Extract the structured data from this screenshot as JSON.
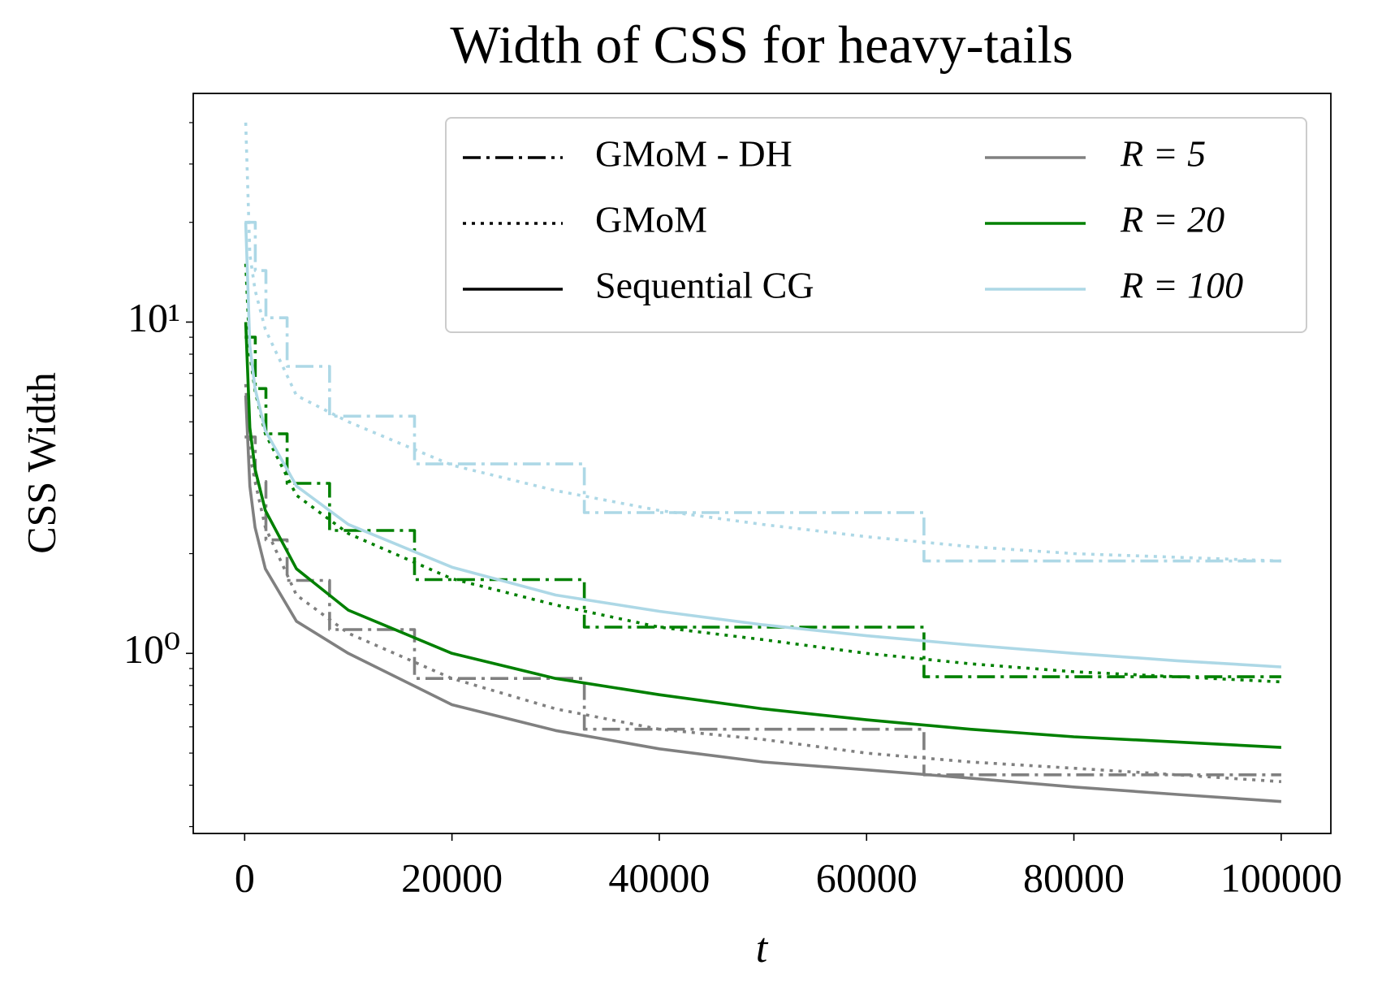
{
  "chart_data": {
    "type": "line",
    "title": "Width of CSS for heavy-tails",
    "x_label": "t",
    "y_label": "CSS Width",
    "log_y": true,
    "xlim": [
      -4960,
      104790
    ],
    "ylim": [
      0.286,
      49
    ],
    "xticks": [
      0,
      20000,
      40000,
      60000,
      80000,
      100000
    ],
    "yticks": [
      {
        "value": 1,
        "label": "10⁰"
      },
      {
        "value": 10,
        "label": "10¹"
      }
    ],
    "yminorticks": [
      0.3,
      0.4,
      0.5,
      0.6,
      0.7,
      0.8,
      0.9,
      2,
      3,
      4,
      5,
      6,
      7,
      8,
      9,
      20,
      30,
      40
    ],
    "legend_styles": [
      {
        "name": "GMoM - DH",
        "dash": "dashdot"
      },
      {
        "name": "GMoM",
        "dash": "dotted"
      },
      {
        "name": "Sequential CG",
        "dash": "solid"
      }
    ],
    "series": [
      {
        "name": "R = 5",
        "color": "#808080",
        "lines": [
          {
            "x": [
              0,
              1024,
              1024,
              2048,
              2048,
              4096,
              4096,
              8192,
              8192,
              16384,
              16384,
              32768,
              32768,
              65536,
              65536,
              100000
            ],
            "values": [
              4.5,
              4.5,
              3.3,
              3.3,
              2.2,
              2.2,
              1.66,
              1.66,
              1.18,
              1.18,
              0.84,
              0.84,
              0.59,
              0.59,
              0.43,
              0.43
            ]
          },
          {
            "x": [
              100,
              500,
              1000,
              2000,
              5000,
              10000,
              20000,
              30000,
              40000,
              50000,
              60000,
              70000,
              80000,
              90000,
              100000
            ],
            "values": [
              6.5,
              4.0,
              3.3,
              2.4,
              1.5,
              1.15,
              0.84,
              0.68,
              0.59,
              0.55,
              0.5,
              0.47,
              0.45,
              0.43,
              0.41
            ]
          },
          {
            "x": [
              100,
              500,
              1000,
              2000,
              5000,
              10000,
              20000,
              30000,
              40000,
              50000,
              60000,
              70000,
              80000,
              90000,
              100000
            ],
            "values": [
              6.0,
              3.2,
              2.4,
              1.8,
              1.25,
              1.0,
              0.7,
              0.585,
              0.515,
              0.47,
              0.445,
              0.42,
              0.395,
              0.375,
              0.357
            ]
          }
        ]
      },
      {
        "name": "R = 20",
        "color": "#008000",
        "lines": [
          {
            "x": [
              0,
              1024,
              1024,
              2048,
              2048,
              4096,
              4096,
              8192,
              8192,
              16384,
              16384,
              32768,
              32768,
              65536,
              65536,
              100000
            ],
            "values": [
              9,
              9,
              6.3,
              6.3,
              4.6,
              4.6,
              3.26,
              3.26,
              2.35,
              2.35,
              1.67,
              1.67,
              1.2,
              1.2,
              0.85,
              0.85
            ]
          },
          {
            "x": [
              100,
              500,
              1000,
              2000,
              5000,
              10000,
              20000,
              30000,
              40000,
              50000,
              60000,
              70000,
              80000,
              90000,
              100000
            ],
            "values": [
              15,
              8,
              6.2,
              4.6,
              3.0,
              2.3,
              1.68,
              1.4,
              1.2,
              1.1,
              1.0,
              0.93,
              0.88,
              0.85,
              0.82
            ]
          },
          {
            "x": [
              100,
              500,
              1000,
              2000,
              5000,
              10000,
              20000,
              30000,
              40000,
              50000,
              60000,
              70000,
              80000,
              90000,
              100000
            ],
            "values": [
              10,
              4.8,
              3.6,
              2.7,
              1.8,
              1.35,
              1.0,
              0.84,
              0.75,
              0.68,
              0.63,
              0.59,
              0.56,
              0.54,
              0.52
            ]
          }
        ]
      },
      {
        "name": "R = 100",
        "color": "#add8e6",
        "lines": [
          {
            "x": [
              0,
              1024,
              1024,
              2048,
              2048,
              4096,
              4096,
              8192,
              8192,
              16384,
              16384,
              32768,
              32768,
              65536,
              65536,
              100000
            ],
            "values": [
              20,
              20,
              14.3,
              14.3,
              10.3,
              10.3,
              7.35,
              7.35,
              5.2,
              5.2,
              3.73,
              3.73,
              2.66,
              2.66,
              1.9,
              1.9
            ]
          },
          {
            "x": [
              100,
              500,
              1000,
              2000,
              5000,
              10000,
              20000,
              30000,
              40000,
              50000,
              60000,
              70000,
              80000,
              90000,
              100000
            ],
            "values": [
              40,
              16,
              12.5,
              9.5,
              6.0,
              5.0,
              3.7,
              3.1,
              2.7,
              2.45,
              2.25,
              2.1,
              2.0,
              1.95,
              1.9
            ]
          },
          {
            "x": [
              100,
              500,
              1000,
              2000,
              5000,
              10000,
              20000,
              30000,
              40000,
              50000,
              60000,
              70000,
              80000,
              90000,
              100000
            ],
            "values": [
              20,
              8.5,
              6.3,
              4.7,
              3.2,
              2.45,
              1.82,
              1.5,
              1.34,
              1.22,
              1.13,
              1.06,
              1.0,
              0.95,
              0.91
            ]
          }
        ]
      }
    ]
  }
}
